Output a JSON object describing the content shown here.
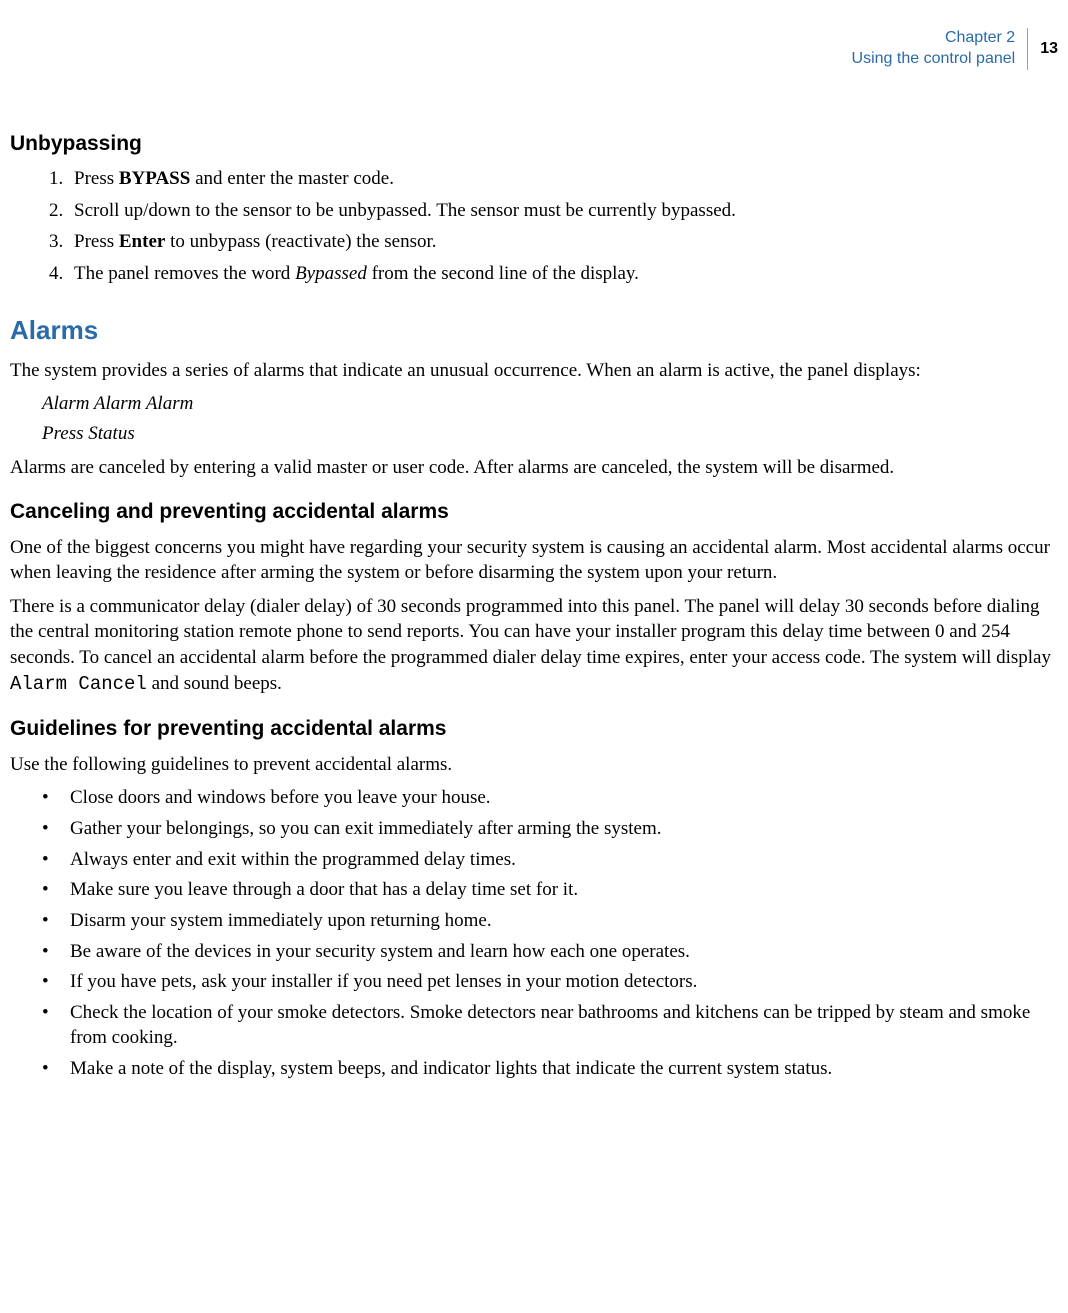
{
  "header": {
    "chapter_line": "Chapter 2",
    "chapter_title": "Using the control panel",
    "page_number": "13"
  },
  "colors": {
    "accent": "#2b6aa8",
    "text": "#000000",
    "background": "#ffffff"
  },
  "unbypassing": {
    "title": "Unbypassing",
    "steps": [
      {
        "pre": "Press ",
        "bold": "BYPASS",
        "post": " and enter the master code."
      },
      {
        "plain": "Scroll up/down to the sensor to be unbypassed. The sensor must be currently bypassed."
      },
      {
        "pre": "Press ",
        "bold": "Enter",
        "post": " to unbypass (reactivate) the sensor."
      },
      {
        "pre": "The panel removes the word ",
        "italic": "Bypassed",
        "post": " from the second line of the display."
      }
    ]
  },
  "alarms": {
    "title": "Alarms",
    "intro": "The system provides a series of alarms that indicate an unusual occurrence. When an alarm is active, the panel displays:",
    "display_line1": "Alarm Alarm Alarm",
    "display_line2": "Press Status",
    "after": "Alarms are canceled by entering a valid master or user code. After alarms are canceled, the system will be disarmed."
  },
  "canceling": {
    "title": "Canceling and preventing accidental alarms",
    "para1": "One of the biggest concerns you might have regarding your security system is causing an accidental alarm. Most accidental alarms occur when leaving the residence after arming the system or before disarming the system upon your return.",
    "para2_pre": "There is a communicator delay (dialer delay) of 30 seconds programmed into this panel. The panel will delay 30 seconds before dialing the central monitoring station remote phone to send reports. You can have your installer program this delay time between 0 and 254 seconds. To cancel an accidental alarm before the programmed dialer delay time expires, enter your access code. The system will display ",
    "para2_mono": "Alarm Cancel",
    "para2_post": " and sound beeps."
  },
  "guidelines": {
    "title": "Guidelines for preventing accidental alarms",
    "intro": "Use the following guidelines to prevent accidental alarms.",
    "items": [
      "Close doors and windows before you leave your house.",
      "Gather your belongings, so you can exit immediately after arming the system.",
      "Always enter and exit within the programmed delay times.",
      "Make sure you leave through a door that has a delay time set for it.",
      "Disarm your system immediately upon returning home.",
      "Be aware of the devices in your security system and learn how each one operates.",
      "If you have pets, ask your installer if you need pet lenses in your motion detectors.",
      "Check the location of your smoke detectors. Smoke detectors near bathrooms and kitchens can be tripped by steam and smoke from cooking.",
      "Make a note of the display, system beeps, and indicator lights that indicate the current system status."
    ]
  }
}
